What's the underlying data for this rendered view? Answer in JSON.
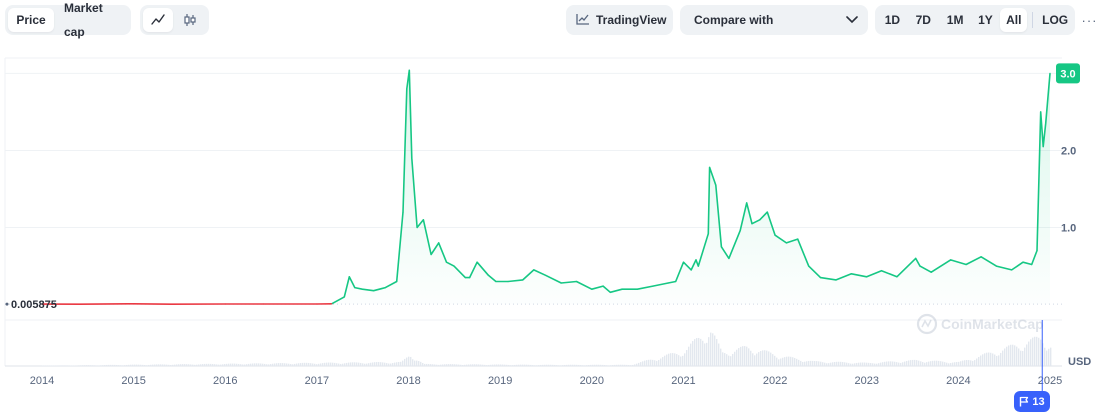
{
  "toolbar": {
    "tabs": [
      {
        "label": "Price",
        "active": true
      },
      {
        "label": "Market cap",
        "active": false
      }
    ],
    "chart_styles": [
      {
        "icon": "line-chart-icon",
        "active": true
      },
      {
        "icon": "candlestick-icon",
        "active": false
      }
    ],
    "tradingview_label": "TradingView",
    "compare_label": "Compare with",
    "ranges": [
      {
        "label": "1D",
        "active": false
      },
      {
        "label": "7D",
        "active": false
      },
      {
        "label": "1M",
        "active": false
      },
      {
        "label": "1Y",
        "active": false
      },
      {
        "label": "All",
        "active": true
      }
    ],
    "log_label": "LOG",
    "more_label": "···"
  },
  "watermark": "CoinMarketCap",
  "events_badge": "13",
  "colors": {
    "up": "#16c784",
    "down": "#ea3943",
    "accent": "#3861fb",
    "grid": "#eff2f5"
  },
  "chart_data": {
    "type": "line",
    "currency": "USD",
    "x_ticks": [
      "2014",
      "2015",
      "2016",
      "2017",
      "2018",
      "2019",
      "2020",
      "2021",
      "2022",
      "2023",
      "2024",
      "2025"
    ],
    "y_ticks": [
      "1.0",
      "2.0"
    ],
    "ylim": [
      -0.2,
      3.2
    ],
    "reference_value": 0.005875,
    "reference_label": "0.005875",
    "current_label": "3.0",
    "current_value": 3.0,
    "grid": true,
    "series": [
      {
        "values": [
          [
            "2014-01-01",
            0.0059
          ],
          [
            "2014-06-01",
            0.005
          ],
          [
            "2015-01-01",
            0.01
          ],
          [
            "2015-06-01",
            0.005
          ],
          [
            "2016-01-01",
            0.007
          ],
          [
            "2016-06-01",
            0.008
          ],
          [
            "2017-01-01",
            0.008
          ],
          [
            "2017-03-01",
            0.01
          ],
          [
            "2017-04-20",
            0.1
          ],
          [
            "2017-05-10",
            0.36
          ],
          [
            "2017-06-01",
            0.22
          ],
          [
            "2017-07-01",
            0.2
          ],
          [
            "2017-08-15",
            0.18
          ],
          [
            "2017-10-01",
            0.22
          ],
          [
            "2017-11-15",
            0.3
          ],
          [
            "2017-12-10",
            1.2
          ],
          [
            "2017-12-25",
            2.8
          ],
          [
            "2018-01-04",
            3.04
          ],
          [
            "2018-01-14",
            1.9
          ],
          [
            "2018-02-04",
            1.0
          ],
          [
            "2018-03-01",
            1.1
          ],
          [
            "2018-04-01",
            0.65
          ],
          [
            "2018-05-01",
            0.8
          ],
          [
            "2018-06-01",
            0.55
          ],
          [
            "2018-07-01",
            0.5
          ],
          [
            "2018-08-15",
            0.35
          ],
          [
            "2018-09-01",
            0.35
          ],
          [
            "2018-10-01",
            0.55
          ],
          [
            "2018-11-15",
            0.38
          ],
          [
            "2018-12-15",
            0.3
          ],
          [
            "2019-02-01",
            0.3
          ],
          [
            "2019-04-01",
            0.32
          ],
          [
            "2019-05-15",
            0.45
          ],
          [
            "2019-07-01",
            0.38
          ],
          [
            "2019-09-01",
            0.28
          ],
          [
            "2019-11-01",
            0.3
          ],
          [
            "2020-01-01",
            0.2
          ],
          [
            "2020-02-15",
            0.24
          ],
          [
            "2020-03-15",
            0.16
          ],
          [
            "2020-05-01",
            0.2
          ],
          [
            "2020-07-01",
            0.2
          ],
          [
            "2020-09-01",
            0.24
          ],
          [
            "2020-11-01",
            0.28
          ],
          [
            "2020-12-01",
            0.3
          ],
          [
            "2021-01-01",
            0.55
          ],
          [
            "2021-02-01",
            0.45
          ],
          [
            "2021-02-20",
            0.58
          ],
          [
            "2021-03-01",
            0.5
          ],
          [
            "2021-04-10",
            0.92
          ],
          [
            "2021-04-15",
            1.78
          ],
          [
            "2021-05-10",
            1.55
          ],
          [
            "2021-06-01",
            0.75
          ],
          [
            "2021-07-01",
            0.6
          ],
          [
            "2021-08-15",
            0.96
          ],
          [
            "2021-09-10",
            1.32
          ],
          [
            "2021-10-01",
            1.05
          ],
          [
            "2021-11-01",
            1.1
          ],
          [
            "2021-12-01",
            1.2
          ],
          [
            "2022-01-01",
            0.9
          ],
          [
            "2022-02-15",
            0.8
          ],
          [
            "2022-04-01",
            0.85
          ],
          [
            "2022-05-15",
            0.5
          ],
          [
            "2022-07-01",
            0.35
          ],
          [
            "2022-09-01",
            0.32
          ],
          [
            "2022-11-01",
            0.4
          ],
          [
            "2023-01-01",
            0.36
          ],
          [
            "2023-03-01",
            0.44
          ],
          [
            "2023-05-01",
            0.36
          ],
          [
            "2023-07-15",
            0.6
          ],
          [
            "2023-08-01",
            0.5
          ],
          [
            "2023-09-15",
            0.42
          ],
          [
            "2023-12-01",
            0.58
          ],
          [
            "2024-02-01",
            0.52
          ],
          [
            "2024-04-01",
            0.62
          ],
          [
            "2024-06-01",
            0.5
          ],
          [
            "2024-08-01",
            0.45
          ],
          [
            "2024-09-15",
            0.55
          ],
          [
            "2024-10-20",
            0.52
          ],
          [
            "2024-11-10",
            0.7
          ],
          [
            "2024-11-25",
            2.5
          ],
          [
            "2024-12-05",
            2.05
          ],
          [
            "2024-12-15",
            2.35
          ],
          [
            "2025-01-01",
            3.0
          ]
        ]
      }
    ],
    "volume": {
      "values": [
        [
          "2014-01-01",
          0.01
        ],
        [
          "2017-12-01",
          0.1
        ],
        [
          "2018-01-05",
          0.3
        ],
        [
          "2018-03-01",
          0.05
        ],
        [
          "2019-06-01",
          0.03
        ],
        [
          "2020-06-01",
          0.03
        ],
        [
          "2021-01-01",
          0.4
        ],
        [
          "2021-04-15",
          1.0
        ],
        [
          "2021-06-01",
          0.35
        ],
        [
          "2021-09-10",
          0.5
        ],
        [
          "2022-02-01",
          0.25
        ],
        [
          "2022-06-01",
          0.12
        ],
        [
          "2023-01-01",
          0.08
        ],
        [
          "2023-07-15",
          0.15
        ],
        [
          "2024-01-01",
          0.1
        ],
        [
          "2024-11-25",
          0.75
        ],
        [
          "2025-01-01",
          0.55
        ]
      ]
    }
  }
}
